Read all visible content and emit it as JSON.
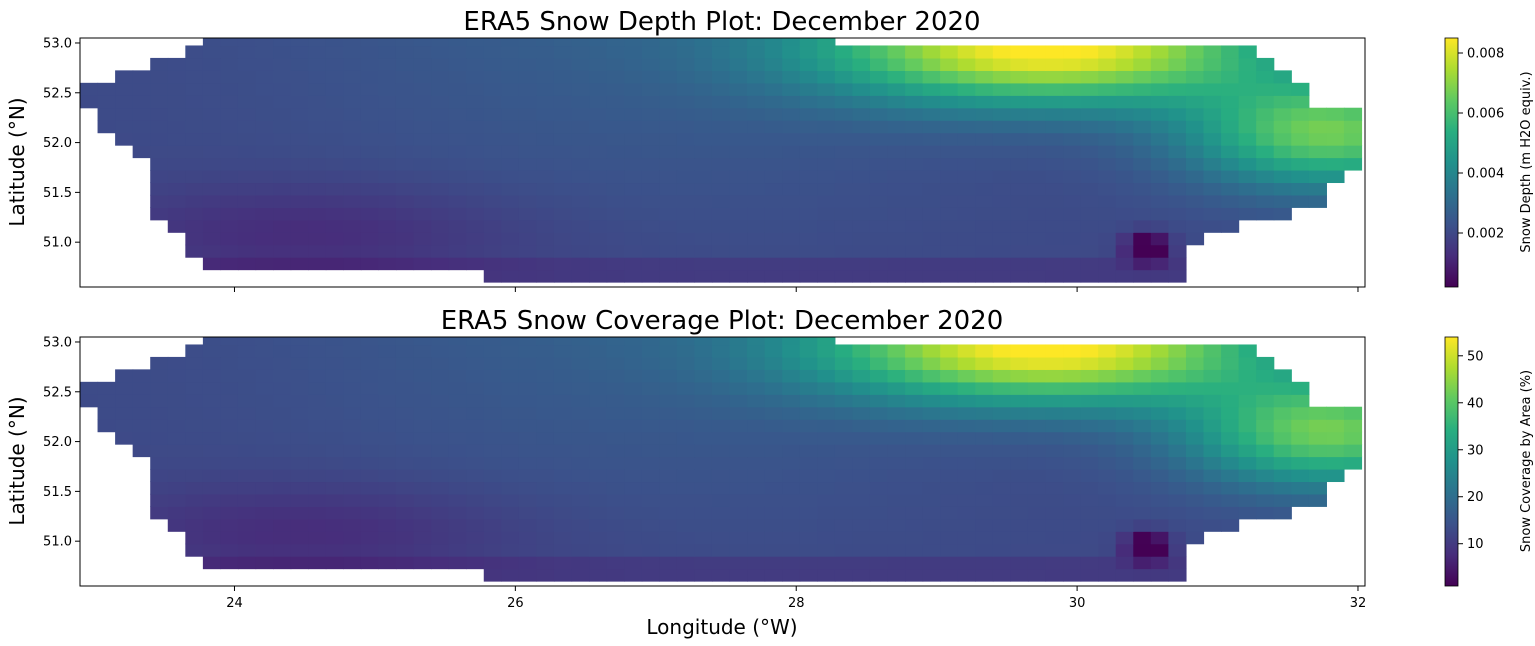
{
  "chart_data": [
    {
      "type": "heatmap",
      "title": "ERA5 Snow Depth Plot: December 2020",
      "xlabel": "",
      "ylabel": "Latitude (°N)",
      "xlim": [
        22.9,
        32.05
      ],
      "ylim": [
        50.55,
        53.05
      ],
      "xticks": [
        24,
        26,
        28,
        30,
        32
      ],
      "xtick_labels": [
        "",
        "",
        "",
        "",
        ""
      ],
      "yticks": [
        51.0,
        51.5,
        52.0,
        52.5,
        53.0
      ],
      "ytick_labels": [
        "51.0",
        "51.5",
        "52.0",
        "52.5",
        "53.0"
      ],
      "colorbar": {
        "label": "Snow Depth (m H2O equiv.)",
        "range": [
          0.0002,
          0.0085
        ],
        "ticks": [
          0.002,
          0.004,
          0.006,
          0.008
        ],
        "tick_labels": [
          "0.002",
          "0.004",
          "0.006",
          "0.008"
        ],
        "colormap": "viridis"
      },
      "grid": false
    },
    {
      "type": "heatmap",
      "title": "ERA5 Snow Coverage Plot: December 2020",
      "xlabel": "Longitude (°W)",
      "ylabel": "Latitude (°N)",
      "xlim": [
        22.9,
        32.05
      ],
      "ylim": [
        50.55,
        53.05
      ],
      "xticks": [
        24,
        26,
        28,
        30,
        32
      ],
      "xtick_labels": [
        "24",
        "26",
        "28",
        "30",
        "32"
      ],
      "yticks": [
        51.0,
        51.5,
        52.0,
        52.5,
        53.0
      ],
      "ytick_labels": [
        "51.0",
        "51.5",
        "52.0",
        "52.5",
        "53.0"
      ],
      "colorbar": {
        "label": "Snow Coverage by Area (%)",
        "range": [
          1,
          54
        ],
        "ticks": [
          10,
          20,
          30,
          40,
          50
        ],
        "tick_labels": [
          "10",
          "20",
          "30",
          "40",
          "50"
        ],
        "colormap": "viridis"
      },
      "grid": false
    }
  ]
}
